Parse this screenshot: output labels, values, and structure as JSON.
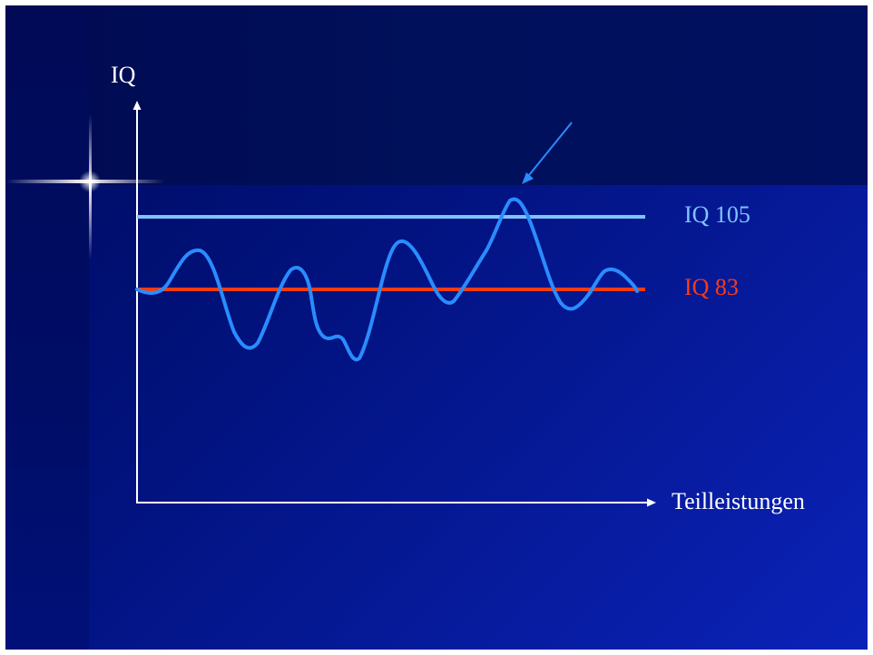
{
  "diagram": {
    "y_axis_label": "IQ",
    "x_axis_label": "Teilleistungen",
    "reference_lines": [
      {
        "label": "IQ 105",
        "value": 105,
        "color": "#7ec4ff"
      },
      {
        "label": "IQ 83",
        "value": 83,
        "color": "#ff3a10"
      }
    ],
    "curve_color": "#2a8cff",
    "arrow_color": "#2a8cff",
    "background_colors": [
      "#000a60",
      "#0b22b8"
    ]
  }
}
